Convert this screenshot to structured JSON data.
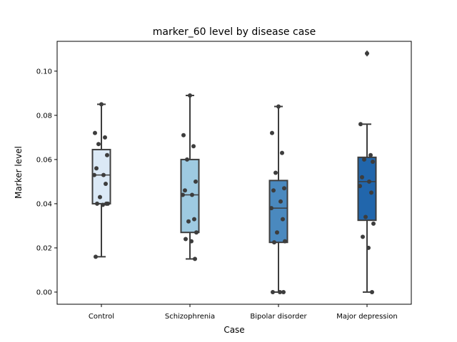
{
  "chart_data": {
    "type": "box",
    "title": "marker_60 level by disease case",
    "xlabel": "Case",
    "ylabel": "Marker level",
    "ylim": [
      -0.0055,
      0.1135
    ],
    "yticks": [
      0.0,
      0.02,
      0.04,
      0.06,
      0.08,
      0.1
    ],
    "ytick_labels": [
      "0.00",
      "0.02",
      "0.04",
      "0.06",
      "0.08",
      "0.10"
    ],
    "grid": false,
    "categories": [
      "Control",
      "Schizophrenia",
      "Bipolar disorder",
      "Major depression"
    ],
    "box_colors": [
      "#dbe9f6",
      "#9ecae1",
      "#4a89bf",
      "#2166ac"
    ],
    "point_color": "#3d3d3d",
    "line_color": "#3d3d3d",
    "boxes": [
      {
        "q1": 0.04,
        "median": 0.053,
        "q3": 0.0645,
        "whisker_low": 0.016,
        "whisker_high": 0.085,
        "outliers": []
      },
      {
        "q1": 0.027,
        "median": 0.044,
        "q3": 0.06,
        "whisker_low": 0.015,
        "whisker_high": 0.089,
        "outliers": []
      },
      {
        "q1": 0.0225,
        "median": 0.038,
        "q3": 0.0505,
        "whisker_low": 0.0,
        "whisker_high": 0.084,
        "outliers": []
      },
      {
        "q1": 0.0325,
        "median": 0.05,
        "q3": 0.061,
        "whisker_low": 0.0,
        "whisker_high": 0.076,
        "outliers": [
          0.108
        ]
      }
    ],
    "points": [
      [
        0.085,
        0.072,
        0.07,
        0.067,
        0.062,
        0.056,
        0.053,
        0.053,
        0.049,
        0.043,
        0.04,
        0.04,
        0.0395,
        0.04,
        0.016
      ],
      [
        0.089,
        0.071,
        0.066,
        0.06,
        0.05,
        0.046,
        0.044,
        0.044,
        0.033,
        0.032,
        0.027,
        0.024,
        0.023,
        0.015
      ],
      [
        0.084,
        0.072,
        0.063,
        0.054,
        0.047,
        0.046,
        0.041,
        0.038,
        0.033,
        0.027,
        0.023,
        0.0225,
        0.0,
        0.0,
        0.0
      ],
      [
        0.108,
        0.076,
        0.062,
        0.06,
        0.059,
        0.052,
        0.05,
        0.048,
        0.045,
        0.034,
        0.031,
        0.025,
        0.02,
        0.0
      ]
    ]
  }
}
